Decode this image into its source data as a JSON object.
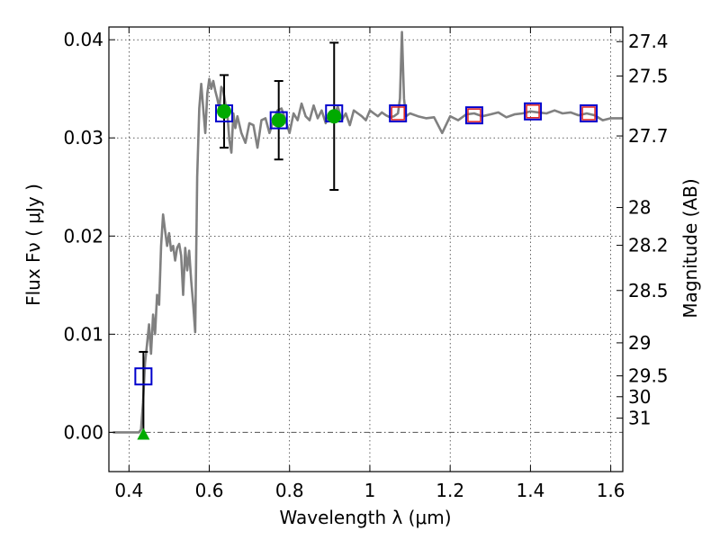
{
  "chart_data": {
    "type": "scatter",
    "title": "",
    "xlabel": "Wavelength  λ (μm)",
    "ylabel": "Flux  Fν  ( μJy )",
    "y2label": "Magnitude (AB)",
    "xlim": [
      0.35,
      1.63
    ],
    "ylim": [
      -0.004,
      0.0413
    ],
    "grid": true,
    "x_ticks": [
      0.4,
      0.6,
      0.8,
      1.0,
      1.2,
      1.4,
      1.6
    ],
    "x_tick_labels": [
      "0.4",
      "0.6",
      "0.8",
      "1",
      "1.2",
      "1.4",
      "1.6"
    ],
    "y_ticks": [
      0.0,
      0.01,
      0.02,
      0.03,
      0.04
    ],
    "y_tick_labels": [
      "0.00",
      "0.01",
      "0.02",
      "0.03",
      "0.04"
    ],
    "y2_ticks": [
      27.4,
      27.5,
      27.7,
      28.0,
      28.2,
      28.5,
      29.0,
      29.5,
      30.0,
      31.0
    ],
    "y2_tick_labels": [
      "27.4",
      "27.5",
      "27.7",
      "28",
      "28.2",
      "28.5",
      "29",
      "29.5",
      "30",
      "31"
    ],
    "colors": {
      "model": "#808080",
      "photometry_box": "#0000cc",
      "inner_box": "#dd2222",
      "measured": "#00aa00",
      "errorbar": "#000000",
      "zero_line": "#555555"
    },
    "series": [
      {
        "kind": "line",
        "x": [
          0.36,
          0.425,
          0.43,
          0.435,
          0.44,
          0.445,
          0.45,
          0.455,
          0.46,
          0.465,
          0.47,
          0.475,
          0.48,
          0.485,
          0.49,
          0.495,
          0.5,
          0.505,
          0.51,
          0.515,
          0.52,
          0.525,
          0.53,
          0.535,
          0.54,
          0.545,
          0.55,
          0.555,
          0.56,
          0.565,
          0.57,
          0.575,
          0.58,
          0.585,
          0.59,
          0.595,
          0.6,
          0.605,
          0.61,
          0.615,
          0.62,
          0.625,
          0.63,
          0.635,
          0.64,
          0.645,
          0.65,
          0.655,
          0.66,
          0.665,
          0.67,
          0.68,
          0.69,
          0.7,
          0.71,
          0.72,
          0.73,
          0.74,
          0.75,
          0.76,
          0.77,
          0.78,
          0.79,
          0.8,
          0.81,
          0.82,
          0.83,
          0.84,
          0.85,
          0.86,
          0.87,
          0.88,
          0.89,
          0.9,
          0.91,
          0.92,
          0.93,
          0.94,
          0.95,
          0.96,
          0.97,
          0.98,
          0.99,
          1.0,
          1.01,
          1.02,
          1.03,
          1.04,
          1.05,
          1.06,
          1.07,
          1.075,
          1.08,
          1.085,
          1.09,
          1.1,
          1.12,
          1.14,
          1.16,
          1.18,
          1.2,
          1.22,
          1.24,
          1.26,
          1.28,
          1.3,
          1.32,
          1.34,
          1.36,
          1.38,
          1.4,
          1.42,
          1.44,
          1.46,
          1.48,
          1.5,
          1.52,
          1.54,
          1.56,
          1.58,
          1.6,
          1.63
        ],
        "y": [
          0.0,
          0.0,
          0.0003,
          0.003,
          0.007,
          0.009,
          0.011,
          0.008,
          0.012,
          0.01,
          0.014,
          0.013,
          0.019,
          0.0222,
          0.0205,
          0.019,
          0.0203,
          0.0185,
          0.019,
          0.0175,
          0.0188,
          0.0192,
          0.018,
          0.014,
          0.0188,
          0.0165,
          0.0185,
          0.0155,
          0.013,
          0.0102,
          0.026,
          0.033,
          0.0355,
          0.033,
          0.0305,
          0.0345,
          0.036,
          0.035,
          0.0358,
          0.0348,
          0.034,
          0.033,
          0.0352,
          0.0348,
          0.0335,
          0.0325,
          0.0298,
          0.0285,
          0.0325,
          0.031,
          0.0322,
          0.0305,
          0.0295,
          0.0315,
          0.0313,
          0.029,
          0.0318,
          0.032,
          0.0305,
          0.0318,
          0.0328,
          0.033,
          0.0318,
          0.0305,
          0.0325,
          0.0318,
          0.0335,
          0.0322,
          0.0318,
          0.0333,
          0.032,
          0.0328,
          0.0315,
          0.0325,
          0.0322,
          0.0332,
          0.0318,
          0.0325,
          0.0313,
          0.0328,
          0.0325,
          0.0322,
          0.0318,
          0.0328,
          0.0325,
          0.0322,
          0.0326,
          0.0323,
          0.0321,
          0.0322,
          0.0325,
          0.034,
          0.0408,
          0.034,
          0.0322,
          0.0325,
          0.0322,
          0.032,
          0.0321,
          0.0305,
          0.0322,
          0.0318,
          0.0324,
          0.0325,
          0.0322,
          0.0324,
          0.0326,
          0.0321,
          0.0324,
          0.0325,
          0.0327,
          0.0326,
          0.0325,
          0.0328,
          0.0325,
          0.0326,
          0.0323,
          0.0325,
          0.0323,
          0.0318,
          0.032,
          0.032
        ]
      },
      {
        "kind": "box_markers",
        "x": [
          0.436,
          0.637,
          0.773,
          0.911,
          1.07,
          1.26,
          1.406,
          1.545
        ],
        "y": [
          0.0057,
          0.0325,
          0.0318,
          0.0325,
          0.0325,
          0.0323,
          0.0327,
          0.0325
        ]
      },
      {
        "kind": "inner_box_markers",
        "x": [
          1.07,
          1.26,
          1.406,
          1.545
        ],
        "y": [
          0.0325,
          0.0323,
          0.0327,
          0.0325
        ]
      },
      {
        "kind": "points_with_errorbars",
        "x": [
          0.637,
          0.773,
          0.911
        ],
        "y": [
          0.0327,
          0.0318,
          0.0322
        ],
        "yerr": [
          0.0037,
          0.004,
          0.0075
        ]
      },
      {
        "kind": "errorbar_only",
        "x": [
          0.436
        ],
        "y": [
          0.0
        ],
        "yerr_upper": [
          0.0082
        ]
      },
      {
        "kind": "upper_limit_triangle",
        "x": [
          0.436
        ],
        "y": [
          -0.0002
        ]
      }
    ]
  }
}
